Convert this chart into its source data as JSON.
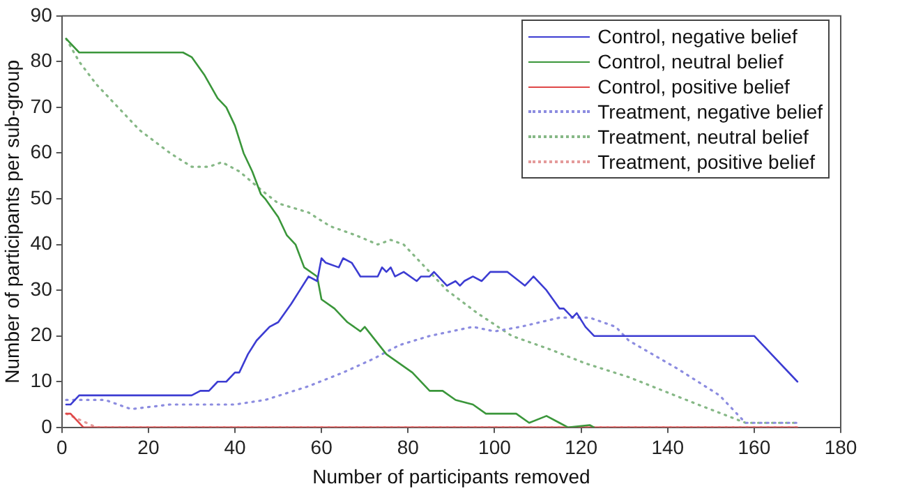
{
  "chart_data": {
    "type": "line",
    "xlabel": "Number of participants removed",
    "ylabel": "Number of participants per sub-group",
    "xlim": [
      0,
      180
    ],
    "xticks": [
      0,
      20,
      40,
      60,
      80,
      100,
      120,
      140,
      160,
      180
    ],
    "ylim": [
      0,
      90
    ],
    "yticks": [
      0,
      10,
      20,
      30,
      40,
      50,
      60,
      70,
      80,
      90
    ],
    "grid": false,
    "legend": "top right",
    "marker": "none",
    "series": [
      {
        "name": "Control, negative belief",
        "color": "#3c3cd2",
        "line_style": "solid",
        "x": [
          1,
          2,
          4,
          30,
          32,
          34,
          36,
          38,
          40,
          41,
          43,
          45,
          48,
          50,
          53,
          55,
          57,
          59,
          60,
          61,
          64,
          65,
          67,
          69,
          73,
          74,
          75,
          76,
          77,
          79,
          82,
          83,
          85,
          86,
          89,
          91,
          92,
          93,
          95,
          97,
          99,
          103,
          107,
          108,
          109,
          112,
          115,
          116,
          118,
          119,
          121,
          123,
          160,
          170
        ],
        "values": [
          5,
          5,
          7,
          7,
          8,
          8,
          10,
          10,
          12,
          12,
          16,
          19,
          22,
          23,
          27,
          30,
          33,
          32,
          37,
          36,
          35,
          37,
          36,
          33,
          33,
          35,
          34,
          35,
          33,
          34,
          32,
          33,
          33,
          34,
          31,
          32,
          31,
          32,
          33,
          32,
          34,
          34,
          31,
          32,
          33,
          30,
          26,
          26,
          24,
          25,
          22,
          20,
          20,
          10
        ]
      },
      {
        "name": "Control, neutral belief",
        "color": "#3a963a",
        "line_style": "solid",
        "x": [
          1,
          4,
          28,
          30,
          33,
          36,
          38,
          40,
          42,
          44,
          46,
          47,
          50,
          52,
          54,
          56,
          59,
          60,
          63,
          66,
          69,
          70,
          75,
          81,
          85,
          88,
          91,
          95,
          98,
          105,
          108,
          112,
          115,
          117,
          122,
          123
        ],
        "values": [
          85,
          82,
          82,
          81,
          77,
          72,
          70,
          66,
          60,
          56,
          51,
          50,
          46,
          42,
          40,
          35,
          33,
          28,
          26,
          23,
          21,
          22,
          16,
          12,
          8,
          8,
          6,
          5,
          3,
          3,
          1,
          2.5,
          1,
          0,
          0.5,
          0
        ]
      },
      {
        "name": "Control, positive belief",
        "color": "#e04848",
        "line_style": "solid",
        "x": [
          1,
          2,
          5,
          170
        ],
        "values": [
          3,
          3,
          0,
          0
        ]
      },
      {
        "name": "Treatment, negative belief",
        "color": "#8c8ce0",
        "line_style": "dotted",
        "x": [
          1,
          10,
          16,
          25,
          40,
          47,
          57,
          65,
          72,
          78,
          85,
          95,
          100,
          106,
          115,
          122,
          128,
          131,
          142,
          152,
          158,
          170
        ],
        "values": [
          6,
          6,
          4,
          5,
          5,
          6,
          9,
          12,
          15,
          18,
          20,
          22,
          21,
          22,
          24,
          24,
          22,
          19,
          13,
          7,
          1,
          1
        ]
      },
      {
        "name": "Treatment, neutral belief",
        "color": "#86b886",
        "line_style": "dotted",
        "x": [
          1,
          4,
          8,
          13,
          18,
          25,
          30,
          34,
          37,
          41,
          46,
          50,
          57,
          62,
          68,
          73,
          76,
          79,
          84,
          89,
          96,
          104,
          113,
          121,
          131,
          147,
          158,
          170
        ],
        "values": [
          85,
          80,
          75,
          70,
          65,
          60,
          57,
          57,
          58,
          56,
          52,
          49,
          47,
          44,
          42,
          40,
          41,
          40,
          35,
          30,
          25,
          20,
          17,
          14,
          11,
          5,
          1,
          1
        ]
      },
      {
        "name": "Treatment, positive belief",
        "color": "#e49a9a",
        "line_style": "dotted",
        "x": [
          1,
          8,
          170
        ],
        "values": [
          3,
          0,
          0
        ]
      }
    ]
  }
}
